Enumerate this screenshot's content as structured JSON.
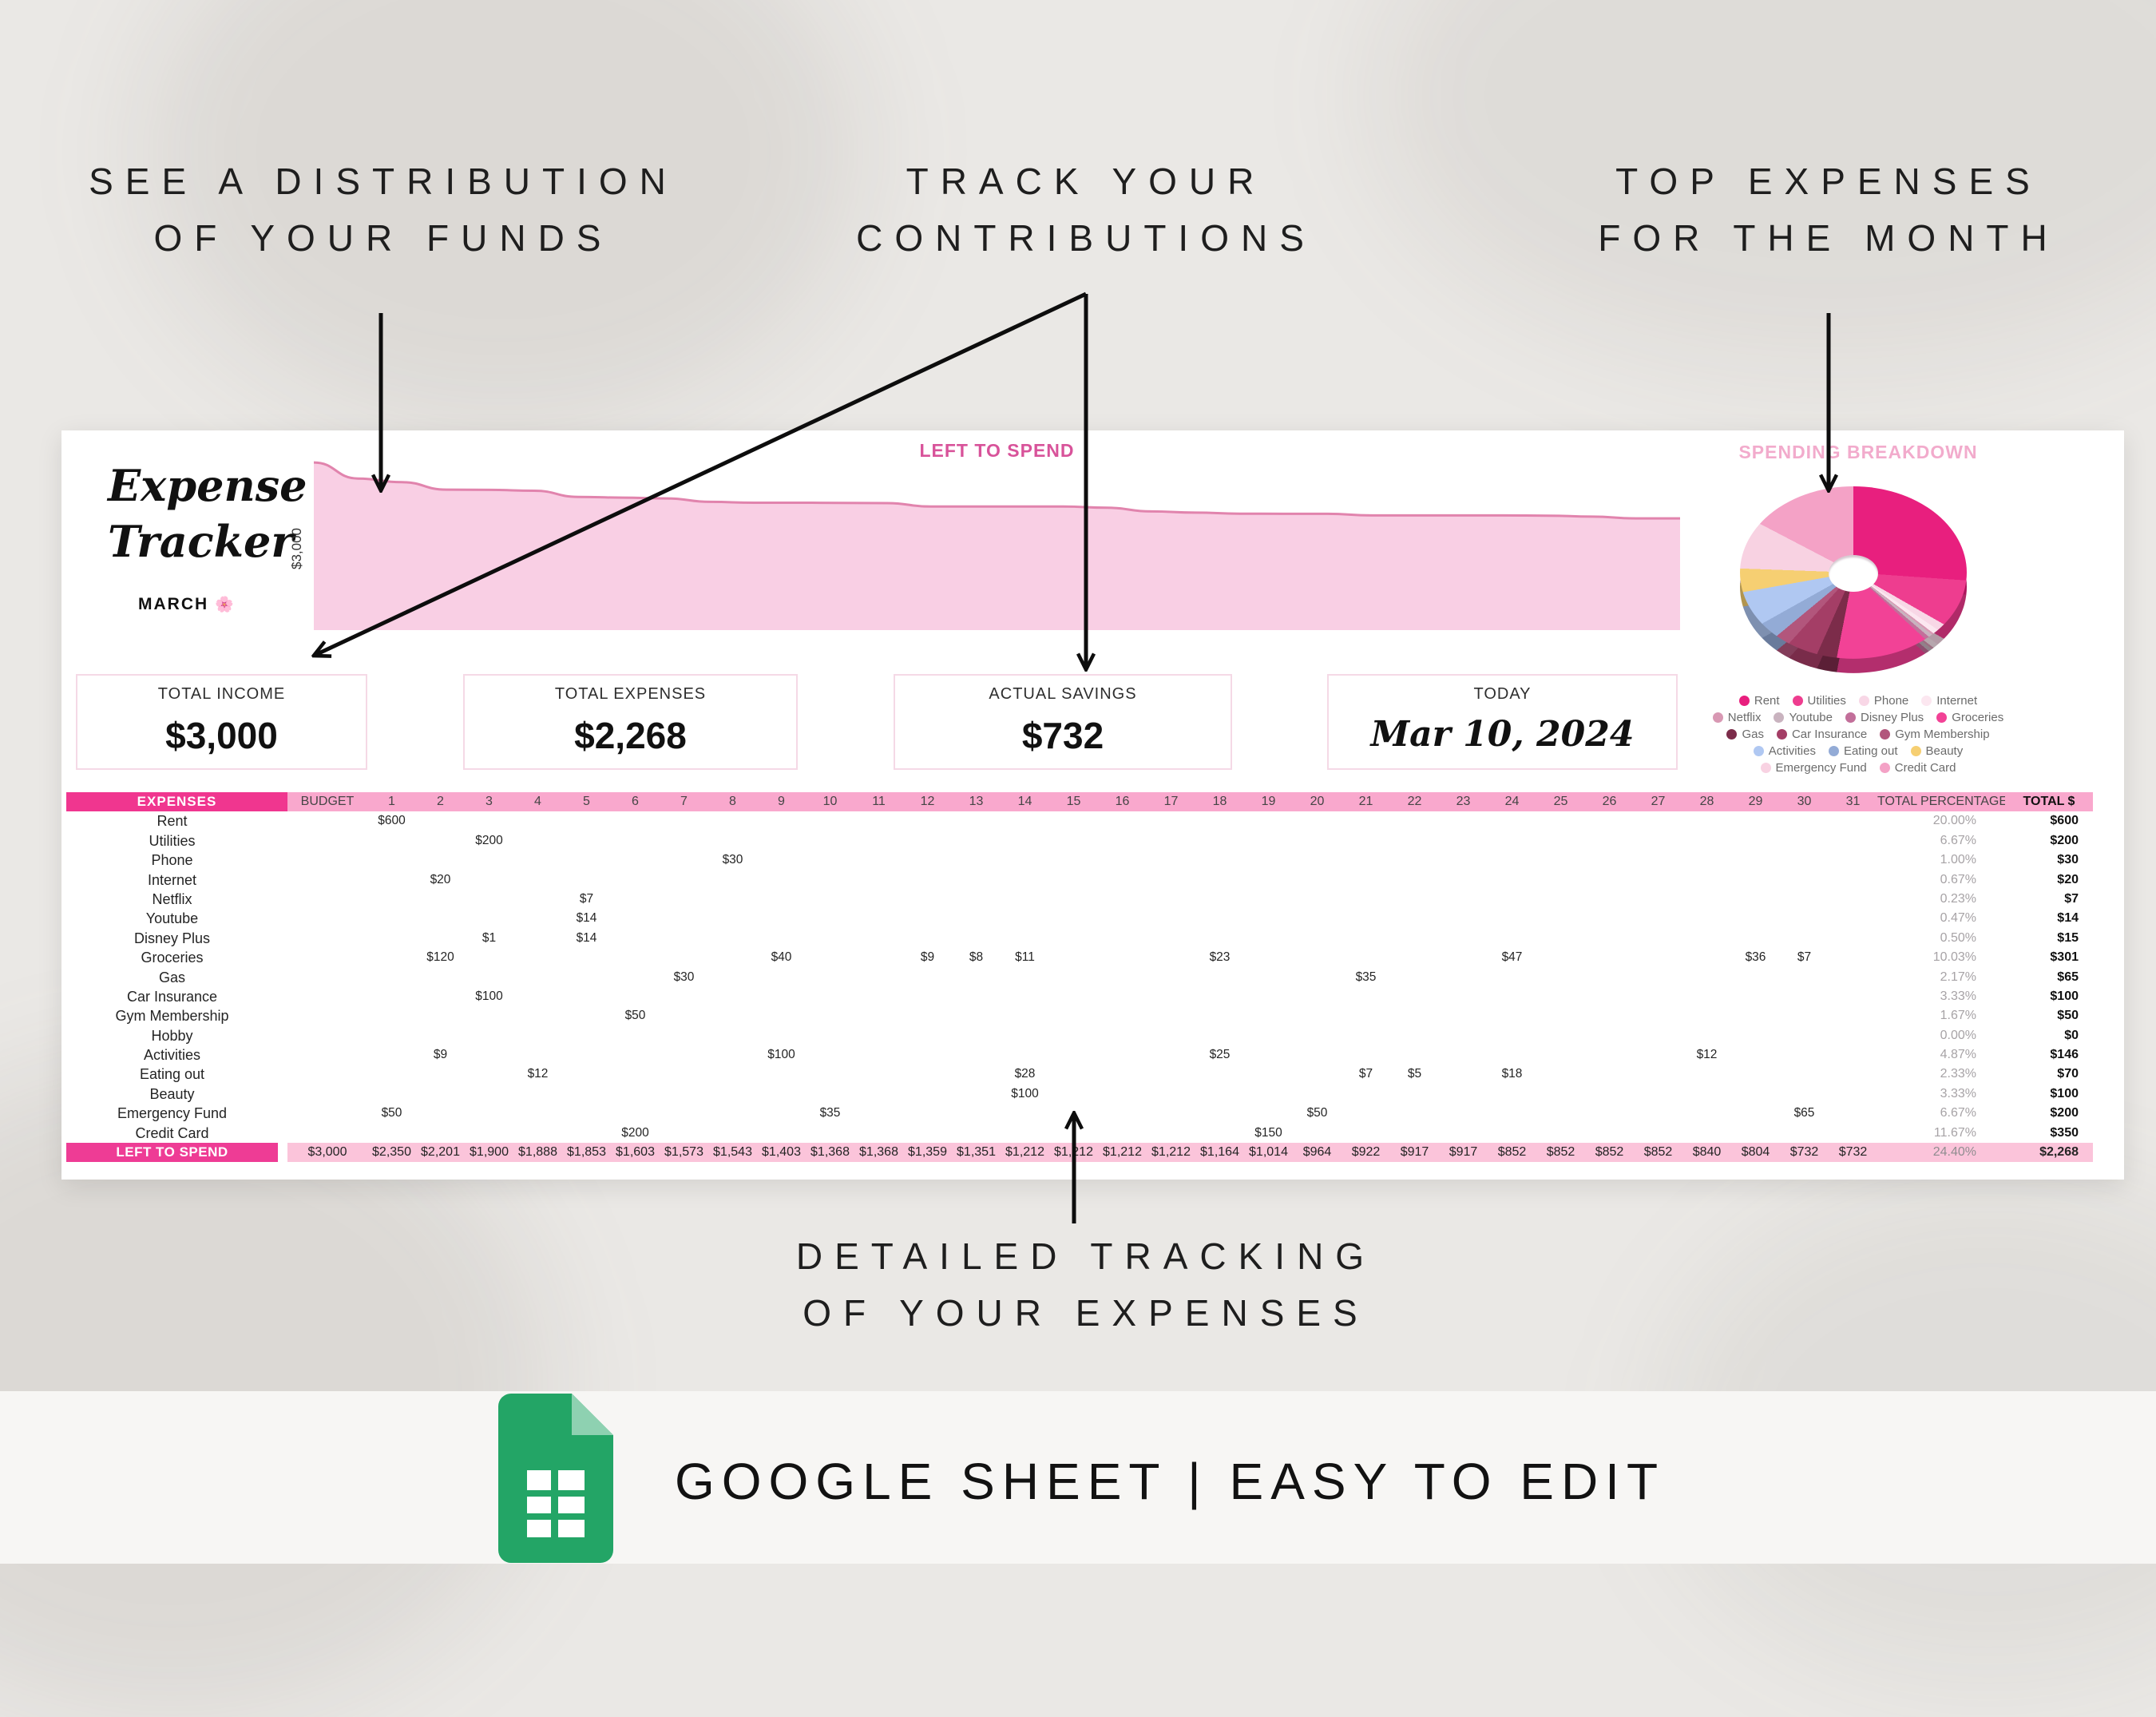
{
  "annotations": {
    "distribution": {
      "line1": "SEE A DISTRIBUTION",
      "line2": "OF YOUR FUNDS"
    },
    "contributions": {
      "line1": "TRACK YOUR",
      "line2": "CONTRIBUTIONS"
    },
    "top_expenses": {
      "line1": "TOP EXPENSES",
      "line2": "FOR THE MONTH"
    },
    "detailed": {
      "line1": "DETAILED TRACKING",
      "line2": "OF YOUR EXPENSES"
    }
  },
  "sheet": {
    "title_line1": "Expense",
    "title_line2": "Tracker",
    "month": "MARCH",
    "flower": "🌸",
    "cards": [
      {
        "label": "TOTAL INCOME",
        "value": "$3,000",
        "style": "plain"
      },
      {
        "label": "TOTAL EXPENSES",
        "value": "$2,268",
        "style": "plain"
      },
      {
        "label": "ACTUAL SAVINGS",
        "value": "$732",
        "style": "plain"
      },
      {
        "label": "TODAY",
        "value": "Mar 10, 2024",
        "style": "script"
      }
    ],
    "legend_rows": [
      [
        "Rent",
        "Utilities",
        "Phone",
        "Internet"
      ],
      [
        "Netflix",
        "Youtube",
        "Disney Plus",
        "Groceries"
      ],
      [
        "Gas",
        "Car Insurance",
        "Gym Membership"
      ],
      [
        "Activities",
        "Eating out",
        "Beauty"
      ],
      [
        "Emergency Fund",
        "Credit Card"
      ]
    ]
  },
  "chart_data": [
    {
      "type": "area",
      "title": "LEFT TO SPEND",
      "title_color": "#d8539a",
      "y_axis_label": "$3,000",
      "x_start_label": "BUDGET",
      "x_range_days": [
        0,
        31
      ],
      "values": [
        3000,
        2350,
        2201,
        1900,
        1888,
        1853,
        1603,
        1573,
        1543,
        1403,
        1368,
        1368,
        1359,
        1351,
        1212,
        1212,
        1212,
        1212,
        1164,
        1014,
        964,
        922,
        917,
        917,
        852,
        852,
        852,
        852,
        840,
        804,
        732,
        732
      ],
      "line_color": "#e184ad",
      "fill_color": "#f9cfe4"
    },
    {
      "type": "donut",
      "title": "SPENDING BREAKDOWN",
      "title_color": "#f2abcc",
      "slices": [
        {
          "label": "Rent",
          "value": 600,
          "color": "#e81f7e"
        },
        {
          "label": "Utilities",
          "value": 200,
          "color": "#ee3d8f"
        },
        {
          "label": "Phone",
          "value": 30,
          "color": "#f8d7e6"
        },
        {
          "label": "Internet",
          "value": 20,
          "color": "#fce7f0"
        },
        {
          "label": "Netflix",
          "value": 7,
          "color": "#d898b3"
        },
        {
          "label": "Youtube",
          "value": 14,
          "color": "#c9b3bf"
        },
        {
          "label": "Disney Plus",
          "value": 15,
          "color": "#c26f9a"
        },
        {
          "label": "Groceries",
          "value": 301,
          "color": "#f24296"
        },
        {
          "label": "Gas",
          "value": 65,
          "color": "#7c2c4a"
        },
        {
          "label": "Car Insurance",
          "value": 100,
          "color": "#a43e66"
        },
        {
          "label": "Gym Membership",
          "value": 50,
          "color": "#b2567c"
        },
        {
          "label": "Eating out",
          "value": 70,
          "color": "#93abd6"
        },
        {
          "label": "Activities",
          "value": 146,
          "color": "#b0c8f2"
        },
        {
          "label": "Beauty",
          "value": 100,
          "color": "#f6cf72"
        },
        {
          "label": "Emergency Fund",
          "value": 200,
          "color": "#f8d2e2"
        },
        {
          "label": "Credit Card",
          "value": 350,
          "color": "#f4a2c6"
        }
      ]
    }
  ],
  "table": {
    "header": {
      "expenses": "EXPENSES",
      "budget": "BUDGET",
      "days": [
        "1",
        "2",
        "3",
        "4",
        "5",
        "6",
        "7",
        "8",
        "9",
        "10",
        "11",
        "12",
        "13",
        "14",
        "15",
        "16",
        "17",
        "18",
        "19",
        "20",
        "21",
        "22",
        "23",
        "24",
        "25",
        "26",
        "27",
        "28",
        "29",
        "30",
        "31"
      ],
      "total_percentage": "TOTAL PERCENTAGE",
      "total_dollar": "TOTAL $"
    },
    "rows": [
      {
        "name": "Rent",
        "values": {
          "1": "$600"
        },
        "percent": "20.00%",
        "total": "$600"
      },
      {
        "name": "Utilities",
        "values": {
          "3": "$200"
        },
        "percent": "6.67%",
        "total": "$200"
      },
      {
        "name": "Phone",
        "values": {
          "8": "$30"
        },
        "percent": "1.00%",
        "total": "$30"
      },
      {
        "name": "Internet",
        "values": {
          "2": "$20"
        },
        "percent": "0.67%",
        "total": "$20"
      },
      {
        "name": "Netflix",
        "values": {
          "5": "$7"
        },
        "percent": "0.23%",
        "total": "$7"
      },
      {
        "name": "Youtube",
        "values": {
          "5": "$14"
        },
        "percent": "0.47%",
        "total": "$14"
      },
      {
        "name": "Disney Plus",
        "values": {
          "3": "$1",
          "5": "$14"
        },
        "percent": "0.50%",
        "total": "$15"
      },
      {
        "name": "Groceries",
        "values": {
          "2": "$120",
          "9": "$40",
          "12": "$9",
          "13": "$8",
          "14": "$11",
          "18": "$23",
          "24": "$47",
          "29": "$36",
          "30": "$7"
        },
        "percent": "10.03%",
        "total": "$301"
      },
      {
        "name": "Gas",
        "values": {
          "7": "$30",
          "21": "$35"
        },
        "percent": "2.17%",
        "total": "$65"
      },
      {
        "name": "Car Insurance",
        "values": {
          "3": "$100"
        },
        "percent": "3.33%",
        "total": "$100"
      },
      {
        "name": "Gym Membership",
        "values": {
          "6": "$50"
        },
        "percent": "1.67%",
        "total": "$50"
      },
      {
        "name": "Hobby",
        "values": {},
        "percent": "0.00%",
        "total": "$0"
      },
      {
        "name": "Activities",
        "values": {
          "2": "$9",
          "9": "$100",
          "18": "$25",
          "28": "$12"
        },
        "percent": "4.87%",
        "total": "$146"
      },
      {
        "name": "Eating out",
        "values": {
          "4": "$12",
          "14": "$28",
          "21": "$7",
          "22": "$5",
          "24": "$18"
        },
        "percent": "2.33%",
        "total": "$70"
      },
      {
        "name": "Beauty",
        "values": {
          "14": "$100"
        },
        "percent": "3.33%",
        "total": "$100"
      },
      {
        "name": "Emergency Fund",
        "values": {
          "1": "$50",
          "10": "$35",
          "20": "$50",
          "30": "$65"
        },
        "percent": "6.67%",
        "total": "$200"
      },
      {
        "name": "Credit Card",
        "values": {
          "6": "$200",
          "19": "$150"
        },
        "percent": "11.67%",
        "total": "$350"
      }
    ],
    "footer": {
      "name": "LEFT TO SPEND",
      "budget": "$3,000",
      "day_values": [
        "$2,350",
        "$2,201",
        "$1,900",
        "$1,888",
        "$1,853",
        "$1,603",
        "$1,573",
        "$1,543",
        "$1,403",
        "$1,368",
        "$1,368",
        "$1,359",
        "$1,351",
        "$1,212",
        "$1,212",
        "$1,212",
        "$1,212",
        "$1,164",
        "$1,014",
        "$964",
        "$922",
        "$917",
        "$917",
        "$852",
        "$852",
        "$852",
        "$852",
        "$840",
        "$804",
        "$732",
        "$732"
      ],
      "percent": "24.40%",
      "total": "$2,268"
    }
  },
  "footer": {
    "text": "GOOGLE SHEET | EASY TO EDIT"
  }
}
